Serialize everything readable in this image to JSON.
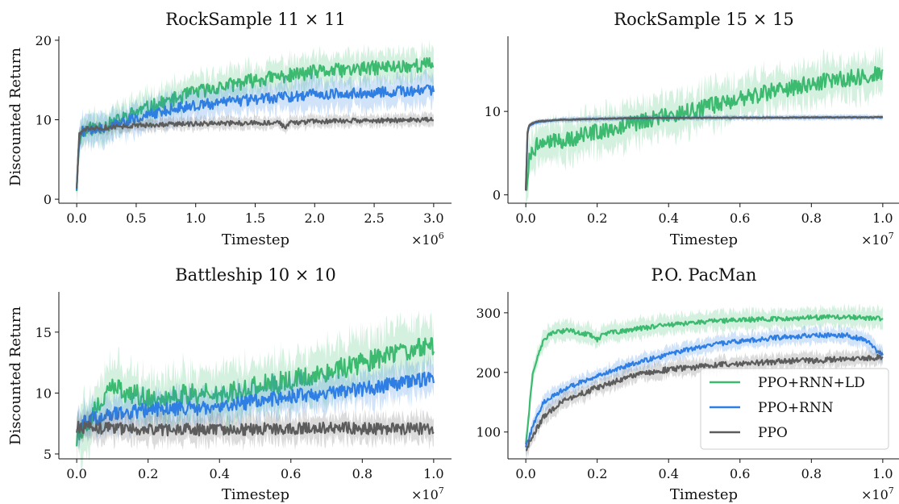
{
  "legend": {
    "entries": [
      {
        "label": "PPO+RNN+LD",
        "color": "#3cba6f"
      },
      {
        "label": "PPO+RNN",
        "color": "#2f7ee3"
      },
      {
        "label": "PPO",
        "color": "#5c5c5c"
      }
    ],
    "placement": "lower-right of P.O. PacMan panel"
  },
  "chart_data": [
    {
      "type": "line",
      "title": "RockSample 11 × 11",
      "xlabel": "Timestep",
      "ylabel": "Discounted Return",
      "x_multiplier": "×10",
      "x_multiplier_exp": "6",
      "xlim": [
        -0.15,
        3.15
      ],
      "ylim": [
        -0.5,
        20.5
      ],
      "xticks": [
        0.0,
        0.5,
        1.0,
        1.5,
        2.0,
        2.5,
        3.0
      ],
      "xtick_labels": [
        "0.0",
        "0.5",
        "1.0",
        "1.5",
        "2.0",
        "2.5",
        "3.0"
      ],
      "yticks": [
        0,
        10,
        20
      ],
      "ytick_labels": [
        "0",
        "10",
        "20"
      ],
      "grid": false,
      "series": [
        {
          "name": "PPO+RNN+LD",
          "x": [
            0,
            0.02,
            0.05,
            0.1,
            0.3,
            0.5,
            0.8,
            1.0,
            1.5,
            2.0,
            2.5,
            3.0
          ],
          "y": [
            1.5,
            7.5,
            8.5,
            8.8,
            9.5,
            11.0,
            12.5,
            13.5,
            15.0,
            16.0,
            16.5,
            17.0
          ],
          "noise": 0.9,
          "band": 1.8
        },
        {
          "name": "PPO+RNN",
          "x": [
            0,
            0.02,
            0.05,
            0.1,
            0.3,
            0.5,
            0.8,
            1.0,
            1.5,
            2.0,
            2.5,
            3.0
          ],
          "y": [
            1.5,
            7.5,
            8.5,
            8.8,
            9.3,
            10.2,
            11.3,
            11.8,
            12.6,
            13.2,
            13.5,
            13.7
          ],
          "noise": 0.7,
          "band": 1.8
        },
        {
          "name": "PPO",
          "x": [
            0,
            0.02,
            0.05,
            0.1,
            0.5,
            1.0,
            1.5,
            1.7,
            1.75,
            1.8,
            2.0,
            2.5,
            3.0
          ],
          "y": [
            1.5,
            8.0,
            8.6,
            8.9,
            9.3,
            9.5,
            9.6,
            9.6,
            9.0,
            9.6,
            9.8,
            9.9,
            10.0
          ],
          "noise": 0.3,
          "band": 0.7
        }
      ]
    },
    {
      "type": "line",
      "title": "RockSample 15 × 15",
      "xlabel": "Timestep",
      "ylabel": "",
      "x_multiplier": "×10",
      "x_multiplier_exp": "7",
      "xlim": [
        -0.05,
        1.05
      ],
      "ylim": [
        -1.0,
        19.0
      ],
      "xticks": [
        0.0,
        0.2,
        0.4,
        0.6,
        0.8,
        1.0
      ],
      "xtick_labels": [
        "0.0",
        "0.2",
        "0.4",
        "0.6",
        "0.8",
        "1.0"
      ],
      "yticks": [
        0,
        10
      ],
      "ytick_labels": [
        "0",
        "10"
      ],
      "grid": false,
      "series": [
        {
          "name": "PPO+RNN+LD",
          "x": [
            0,
            0.01,
            0.03,
            0.1,
            0.2,
            0.3,
            0.4,
            0.5,
            0.6,
            0.7,
            0.8,
            0.9,
            1.0
          ],
          "y": [
            0.5,
            4.5,
            6.0,
            6.5,
            7.5,
            8.5,
            9.5,
            10.5,
            11.5,
            12.5,
            13.3,
            14.0,
            14.5
          ],
          "noise": 1.0,
          "band": 2.2
        },
        {
          "name": "PPO+RNN",
          "x": [
            0,
            0.005,
            0.01,
            0.03,
            0.1,
            0.3,
            1.0
          ],
          "y": [
            0.5,
            7.5,
            8.3,
            8.7,
            9.0,
            9.2,
            9.3
          ],
          "noise": 0.05,
          "band": 0.3
        },
        {
          "name": "PPO",
          "x": [
            0,
            0.005,
            0.01,
            0.03,
            0.1,
            0.3,
            1.0
          ],
          "y": [
            0.5,
            7.8,
            8.4,
            8.8,
            9.0,
            9.2,
            9.3
          ],
          "noise": 0.05,
          "band": 0.2
        }
      ]
    },
    {
      "type": "line",
      "title": "Battleship 10 × 10",
      "xlabel": "Timestep",
      "ylabel": "Discounted Return",
      "x_multiplier": "×10",
      "x_multiplier_exp": "7",
      "xlim": [
        -0.05,
        1.05
      ],
      "ylim": [
        4.6,
        18.3
      ],
      "xticks": [
        0.0,
        0.2,
        0.4,
        0.6,
        0.8,
        1.0
      ],
      "xtick_labels": [
        "0.0",
        "0.2",
        "0.4",
        "0.6",
        "0.8",
        "1.0"
      ],
      "yticks": [
        5,
        10,
        15
      ],
      "ytick_labels": [
        "5",
        "10",
        "15"
      ],
      "grid": false,
      "series": [
        {
          "name": "PPO+RNN+LD",
          "x": [
            0,
            0.05,
            0.1,
            0.2,
            0.3,
            0.4,
            0.5,
            0.6,
            0.7,
            0.8,
            0.9,
            1.0
          ],
          "y": [
            6.5,
            8.5,
            10.5,
            9.5,
            9.8,
            10.0,
            10.5,
            11.0,
            11.8,
            12.5,
            13.2,
            14.0
          ],
          "noise": 0.9,
          "band": 2.0
        },
        {
          "name": "PPO+RNN",
          "x": [
            0,
            0.1,
            0.2,
            0.3,
            0.4,
            0.5,
            0.6,
            0.7,
            0.8,
            0.9,
            1.0
          ],
          "y": [
            7.5,
            8.3,
            8.6,
            8.7,
            8.9,
            9.3,
            9.7,
            10.0,
            10.3,
            10.8,
            11.2
          ],
          "noise": 0.6,
          "band": 1.3
        },
        {
          "name": "PPO",
          "x": [
            0,
            0.2,
            0.4,
            0.6,
            0.8,
            1.0
          ],
          "y": [
            7.2,
            7.0,
            7.0,
            7.1,
            7.1,
            7.1
          ],
          "noise": 0.5,
          "band": 1.0
        }
      ]
    },
    {
      "type": "line",
      "title": "P.O. PacMan",
      "xlabel": "Timestep",
      "ylabel": "",
      "x_multiplier": "×10",
      "x_multiplier_exp": "7",
      "xlim": [
        -0.05,
        1.05
      ],
      "ylim": [
        55,
        335
      ],
      "xticks": [
        0.0,
        0.2,
        0.4,
        0.6,
        0.8,
        1.0
      ],
      "xtick_labels": [
        "0.0",
        "0.2",
        "0.4",
        "0.6",
        "0.8",
        "1.0"
      ],
      "yticks": [
        100,
        200,
        300
      ],
      "ytick_labels": [
        "100",
        "200",
        "300"
      ],
      "grid": false,
      "series": [
        {
          "name": "PPO+RNN+LD",
          "x": [
            0,
            0.02,
            0.05,
            0.08,
            0.12,
            0.18,
            0.2,
            0.22,
            0.3,
            0.4,
            0.5,
            0.6,
            0.7,
            0.8,
            0.9,
            1.0
          ],
          "y": [
            80,
            200,
            255,
            268,
            270,
            263,
            255,
            265,
            272,
            280,
            285,
            288,
            290,
            292,
            293,
            290
          ],
          "noise": 4,
          "band": 15
        },
        {
          "name": "PPO+RNN",
          "x": [
            0,
            0.02,
            0.05,
            0.1,
            0.2,
            0.3,
            0.4,
            0.5,
            0.6,
            0.7,
            0.8,
            0.9,
            0.95,
            1.0
          ],
          "y": [
            75,
            110,
            150,
            170,
            195,
            215,
            230,
            245,
            252,
            258,
            262,
            262,
            255,
            228
          ],
          "noise": 4,
          "band": 12
        },
        {
          "name": "PPO",
          "x": [
            0,
            0.02,
            0.05,
            0.1,
            0.2,
            0.3,
            0.4,
            0.5,
            0.6,
            0.7,
            0.8,
            0.9,
            1.0
          ],
          "y": [
            70,
            95,
            125,
            150,
            175,
            195,
            205,
            210,
            215,
            218,
            220,
            222,
            225
          ],
          "noise": 5,
          "band": 12
        }
      ]
    }
  ]
}
